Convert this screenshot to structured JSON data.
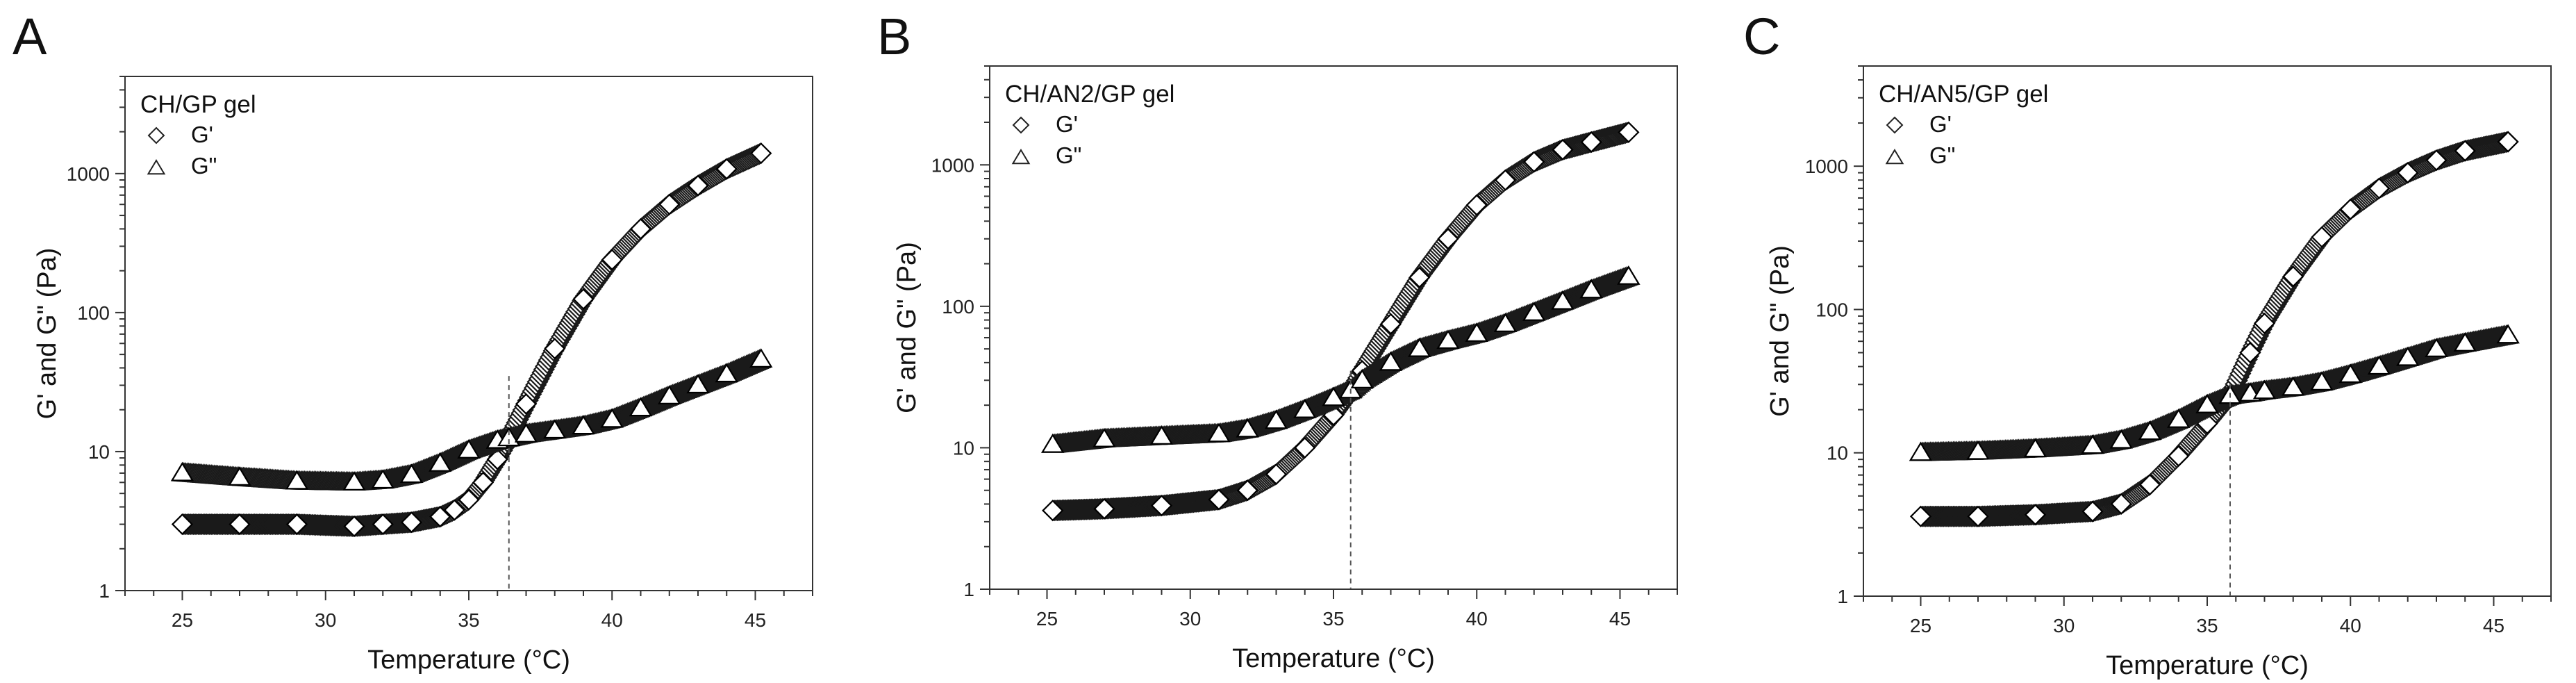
{
  "chart_data": [
    {
      "type": "scatter",
      "panel_label": "A",
      "title": "CH/GP gel",
      "xlabel": "Temperature (°C)",
      "ylabel": "G' and G\" (Pa)",
      "xlim": [
        23,
        47
      ],
      "ylim": [
        1,
        5000
      ],
      "yscale": "log",
      "xticks": [
        25,
        30,
        35,
        40,
        45
      ],
      "yticks": [
        1,
        10,
        100,
        1000
      ],
      "gel_point_x": 36.4,
      "series": [
        {
          "name": "G'",
          "marker": "diamond",
          "x": [
            25,
            27,
            29,
            31,
            32,
            33,
            34,
            34.5,
            35,
            35.5,
            36,
            36.4,
            37,
            38,
            39,
            40,
            41,
            42,
            43,
            44,
            45.2
          ],
          "y": [
            3.0,
            3.0,
            3.0,
            2.9,
            3.0,
            3.1,
            3.4,
            3.8,
            4.5,
            6.0,
            8.8,
            12.5,
            22,
            55,
            125,
            240,
            400,
            600,
            820,
            1080,
            1400
          ]
        },
        {
          "name": "G\"",
          "marker": "triangle",
          "x": [
            25,
            27,
            29,
            31,
            32,
            33,
            34,
            35,
            36,
            36.4,
            37,
            38,
            39,
            40,
            41,
            42,
            43,
            44,
            45.2
          ],
          "y": [
            7.0,
            6.5,
            6.1,
            6.0,
            6.2,
            6.8,
            8.2,
            10.2,
            12.0,
            12.5,
            13.3,
            14.2,
            15.2,
            17.0,
            20.5,
            25,
            30,
            36,
            46
          ]
        }
      ]
    },
    {
      "type": "scatter",
      "panel_label": "B",
      "title": "CH/AN2/GP gel",
      "xlabel": "Temperature (°C)",
      "ylabel": "G' and G\" (Pa)",
      "xlim": [
        23,
        47
      ],
      "ylim": [
        1,
        5000
      ],
      "yscale": "log",
      "xticks": [
        25,
        30,
        35,
        40,
        45
      ],
      "yticks": [
        1,
        10,
        100,
        1000
      ],
      "gel_point_x": 35.6,
      "series": [
        {
          "name": "G'",
          "marker": "diamond",
          "x": [
            25.2,
            27,
            29,
            31,
            32,
            33,
            34,
            35,
            35.6,
            36,
            37,
            38,
            39,
            40,
            41,
            42,
            43,
            44,
            45.3
          ],
          "y": [
            3.6,
            3.7,
            3.9,
            4.3,
            5.0,
            6.5,
            10,
            17,
            25,
            35,
            75,
            160,
            300,
            520,
            780,
            1050,
            1280,
            1450,
            1700
          ]
        },
        {
          "name": "G\"",
          "marker": "triangle",
          "x": [
            25.2,
            27,
            29,
            31,
            32,
            33,
            34,
            35,
            35.6,
            36,
            37,
            38,
            39,
            40,
            41,
            42,
            43,
            44,
            45.3
          ],
          "y": [
            10.5,
            11.5,
            12.0,
            12.5,
            13.5,
            15.5,
            18.5,
            22.5,
            25.5,
            30,
            40,
            50,
            57,
            64,
            75,
            90,
            108,
            130,
            162
          ]
        }
      ]
    },
    {
      "type": "scatter",
      "panel_label": "C",
      "title": "CH/AN5/GP gel",
      "xlabel": "Temperature (°C)",
      "ylabel": "G' and G\" (Pa)",
      "xlim": [
        23,
        47
      ],
      "ylim": [
        1,
        5000
      ],
      "yscale": "log",
      "xticks": [
        25,
        30,
        35,
        40,
        45
      ],
      "yticks": [
        1,
        10,
        100,
        1000
      ],
      "gel_point_x": 35.8,
      "series": [
        {
          "name": "G'",
          "marker": "diamond",
          "x": [
            25,
            27,
            29,
            31,
            32,
            33,
            34,
            35,
            35.8,
            36.5,
            37,
            38,
            39,
            40,
            41,
            42,
            43,
            44,
            45.5
          ],
          "y": [
            3.6,
            3.6,
            3.7,
            3.9,
            4.4,
            6.0,
            9.5,
            16,
            25,
            50,
            80,
            170,
            320,
            500,
            700,
            900,
            1100,
            1280,
            1480
          ]
        },
        {
          "name": "G\"",
          "marker": "triangle",
          "x": [
            25,
            27,
            29,
            31,
            32,
            33,
            34,
            35,
            35.8,
            36.5,
            37,
            38,
            39,
            40,
            41,
            42,
            43,
            44,
            45.5
          ],
          "y": [
            10.0,
            10.2,
            10.6,
            11.2,
            12.2,
            14.0,
            17.0,
            21.5,
            25,
            26,
            27,
            28.5,
            31,
            35,
            40,
            46,
            53,
            58,
            66
          ]
        }
      ]
    }
  ]
}
